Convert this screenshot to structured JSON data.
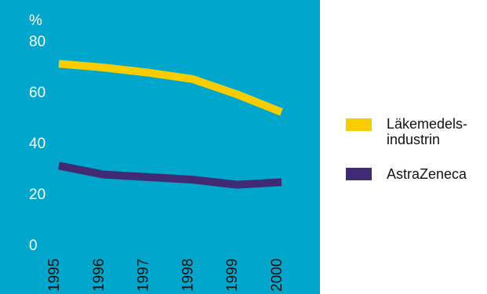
{
  "chart_data": {
    "type": "line",
    "x": [
      "1995",
      "1996",
      "1997",
      "1998",
      "1999",
      "2000"
    ],
    "series": [
      {
        "name": "Läkemedels-\nindustrin",
        "values": [
          71,
          69.5,
          67.5,
          65,
          59,
          52
        ],
        "color": "#F7CD00"
      },
      {
        "name": "AstraZeneca",
        "values": [
          31,
          27.5,
          26.5,
          25.5,
          23.5,
          24.5
        ],
        "color": "#402A73"
      }
    ],
    "y_ticks": [
      "0",
      "20",
      "40",
      "60",
      "80"
    ],
    "ylim": [
      0,
      80
    ],
    "unit_label": "%",
    "background_color": "#00A6CC",
    "axis_text_color": "#FFFFFF"
  }
}
